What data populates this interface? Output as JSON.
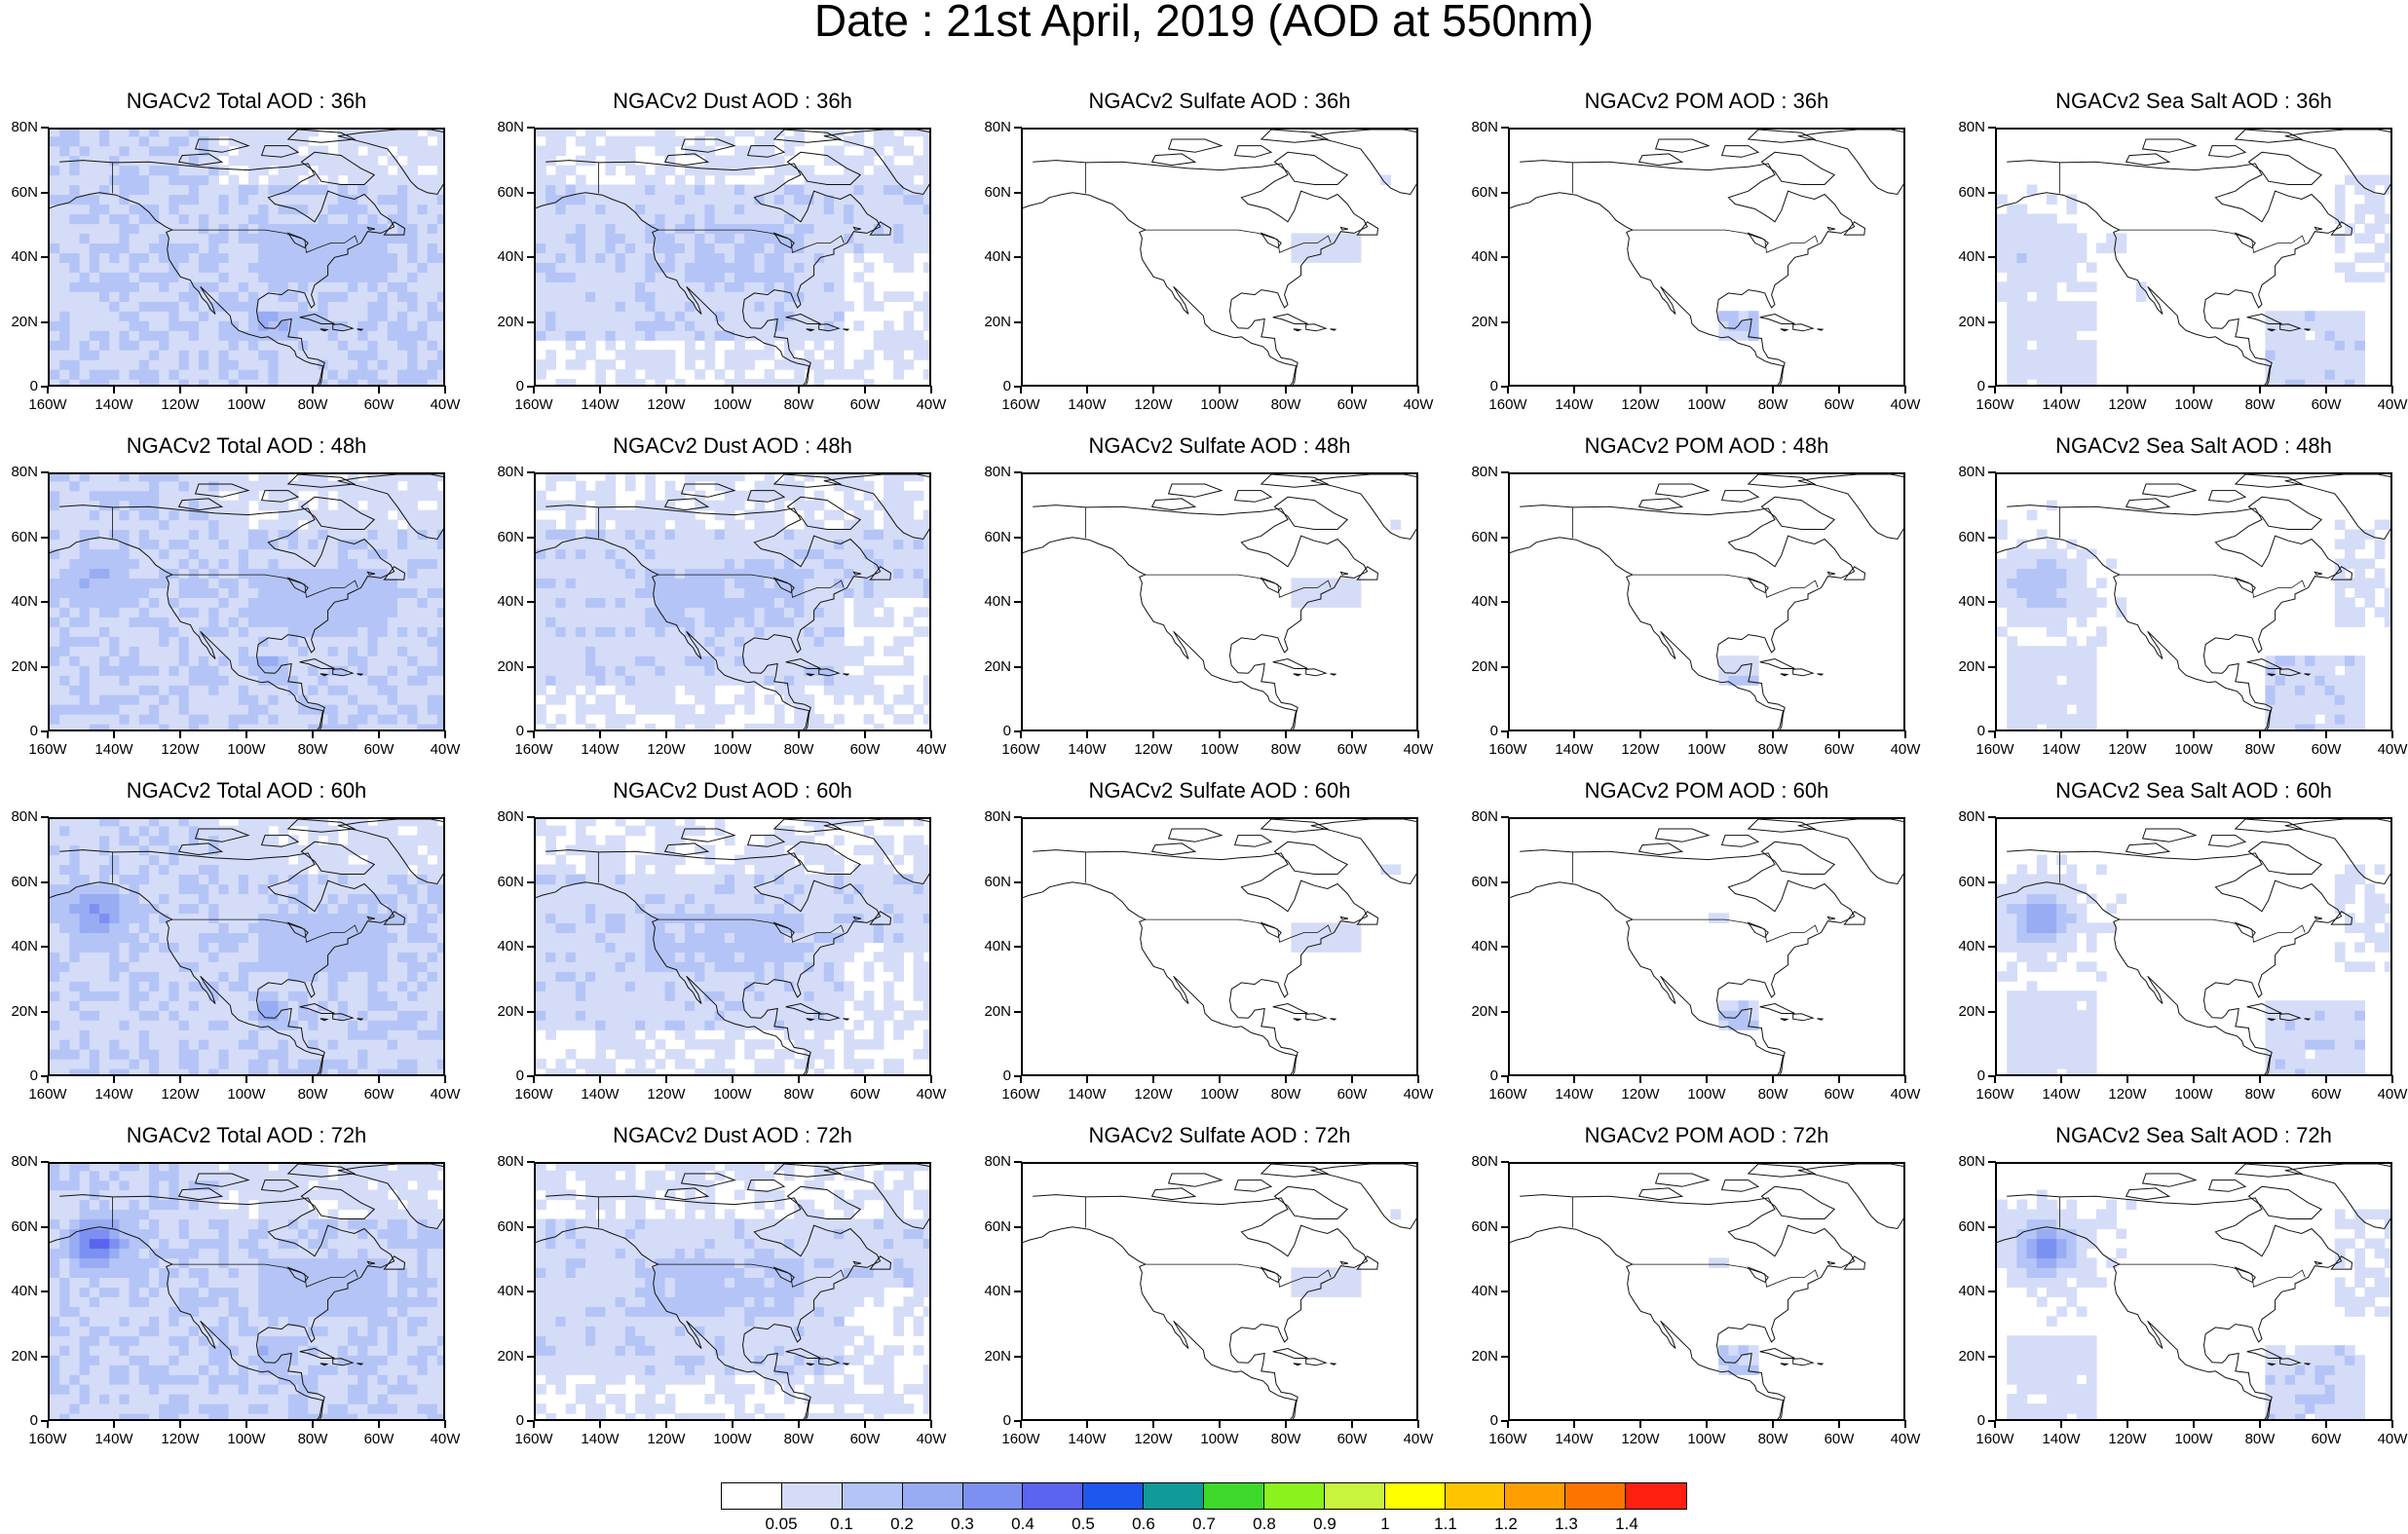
{
  "title": "Date : 21st April, 2019 (AOD at 550nm)",
  "panels": [
    [
      "NGACv2 Total AOD : 36h",
      "NGACv2 Dust AOD : 36h",
      "NGACv2 Sulfate AOD : 36h",
      "NGACv2 POM AOD : 36h",
      "NGACv2 Sea Salt AOD : 36h"
    ],
    [
      "NGACv2 Total AOD : 48h",
      "NGACv2 Dust AOD : 48h",
      "NGACv2 Sulfate AOD : 48h",
      "NGACv2 POM AOD : 48h",
      "NGACv2 Sea Salt AOD : 48h"
    ],
    [
      "NGACv2 Total AOD : 60h",
      "NGACv2 Dust AOD : 60h",
      "NGACv2 Sulfate AOD : 60h",
      "NGACv2 POM AOD : 60h",
      "NGACv2 Sea Salt AOD : 60h"
    ],
    [
      "NGACv2 Total AOD : 72h",
      "NGACv2 Dust AOD : 72h",
      "NGACv2 Sulfate AOD : 72h",
      "NGACv2 POM AOD : 72h",
      "NGACv2 Sea Salt  AOD : 72h"
    ]
  ],
  "lat_labels": [
    "80N",
    "60N",
    "40N",
    "20N",
    "0"
  ],
  "lon_labels": [
    "160W",
    "140W",
    "120W",
    "100W",
    "80W",
    "60W",
    "40W"
  ],
  "colorbar": {
    "labels": [
      "0.05",
      "0.1",
      "0.2",
      "0.3",
      "0.4",
      "0.5",
      "0.6",
      "0.7",
      "0.8",
      "0.9",
      "1",
      "1.1",
      "1.2",
      "1.3",
      "1.4"
    ],
    "colors": [
      "#ffffff",
      "#d4dcf8",
      "#b4c4f6",
      "#98acf4",
      "#7c90f2",
      "#5a64ee",
      "#1e56f0",
      "#109a98",
      "#3ed82c",
      "#8af21c",
      "#c8f43e",
      "#ffff00",
      "#ffc400",
      "#ff9e00",
      "#ff7400",
      "#ff2010"
    ]
  }
}
